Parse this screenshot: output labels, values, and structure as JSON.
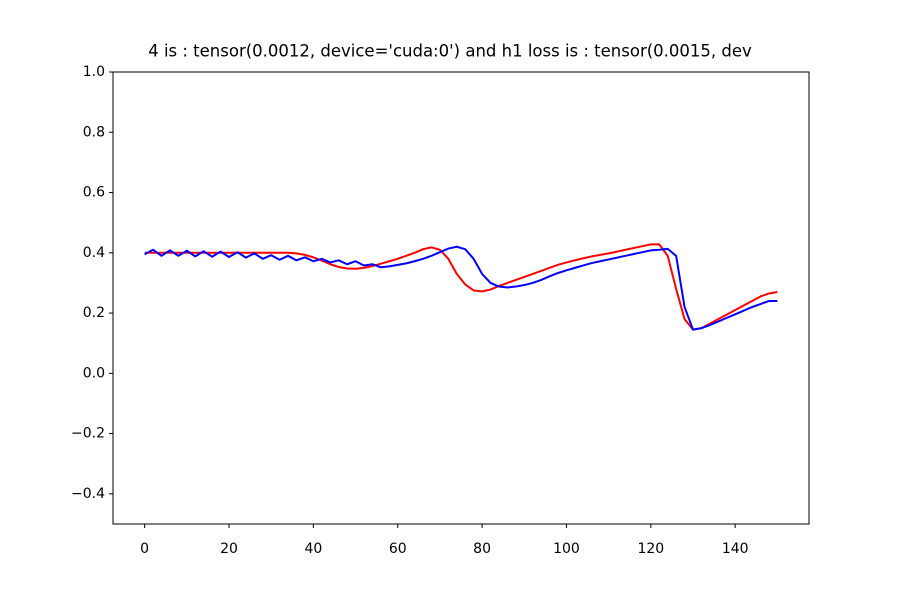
{
  "chart_data": {
    "type": "line",
    "title": "4 is : tensor(0.0012, device='cuda:0') and h1 loss is : tensor(0.0015, dev",
    "x": [
      0,
      2,
      4,
      6,
      8,
      10,
      12,
      14,
      16,
      18,
      20,
      22,
      24,
      26,
      28,
      30,
      32,
      34,
      36,
      38,
      40,
      42,
      44,
      46,
      48,
      50,
      52,
      54,
      56,
      58,
      60,
      62,
      64,
      66,
      68,
      70,
      72,
      74,
      76,
      78,
      80,
      82,
      84,
      86,
      88,
      90,
      92,
      94,
      96,
      98,
      100,
      102,
      104,
      106,
      108,
      110,
      112,
      114,
      116,
      118,
      120,
      122,
      124,
      126,
      128,
      130,
      132,
      134,
      136,
      138,
      140,
      142,
      144,
      146,
      148,
      150
    ],
    "series": [
      {
        "color": "#ff0000",
        "values": [
          0.4,
          0.4,
          0.4,
          0.4,
          0.4,
          0.4,
          0.4,
          0.4,
          0.4,
          0.4,
          0.4,
          0.4,
          0.4,
          0.4,
          0.4,
          0.4,
          0.4,
          0.4,
          0.398,
          0.393,
          0.385,
          0.374,
          0.362,
          0.353,
          0.348,
          0.347,
          0.35,
          0.356,
          0.364,
          0.372,
          0.38,
          0.39,
          0.4,
          0.412,
          0.418,
          0.41,
          0.38,
          0.33,
          0.295,
          0.275,
          0.272,
          0.278,
          0.29,
          0.3,
          0.31,
          0.32,
          0.33,
          0.34,
          0.35,
          0.36,
          0.368,
          0.375,
          0.382,
          0.388,
          0.393,
          0.398,
          0.404,
          0.41,
          0.416,
          0.422,
          0.428,
          0.428,
          0.39,
          0.28,
          0.18,
          0.145,
          0.15,
          0.165,
          0.18,
          0.195,
          0.21,
          0.225,
          0.24,
          0.255,
          0.265,
          0.27
        ]
      },
      {
        "color": "#0000ff",
        "values": [
          0.395,
          0.41,
          0.39,
          0.408,
          0.39,
          0.407,
          0.388,
          0.405,
          0.387,
          0.404,
          0.386,
          0.402,
          0.384,
          0.398,
          0.38,
          0.392,
          0.377,
          0.39,
          0.375,
          0.385,
          0.372,
          0.38,
          0.368,
          0.375,
          0.362,
          0.372,
          0.358,
          0.362,
          0.352,
          0.355,
          0.36,
          0.365,
          0.372,
          0.38,
          0.39,
          0.402,
          0.414,
          0.42,
          0.412,
          0.38,
          0.33,
          0.3,
          0.288,
          0.285,
          0.288,
          0.293,
          0.3,
          0.31,
          0.322,
          0.333,
          0.342,
          0.35,
          0.358,
          0.366,
          0.372,
          0.378,
          0.384,
          0.39,
          0.396,
          0.402,
          0.408,
          0.41,
          0.413,
          0.39,
          0.22,
          0.145,
          0.15,
          0.16,
          0.172,
          0.184,
          0.196,
          0.208,
          0.22,
          0.23,
          0.24,
          0.24
        ]
      }
    ],
    "xlim": [
      -7.5,
      157.5
    ],
    "xticks": [
      0,
      20,
      40,
      60,
      80,
      100,
      120,
      140
    ],
    "ylim": [
      -0.5,
      1.0
    ],
    "yticks": [
      {
        "value": -0.4,
        "label": "−0.4"
      },
      {
        "value": -0.2,
        "label": "−0.2"
      },
      {
        "value": 0,
        "label": "0.0"
      },
      0.2,
      0.4,
      0.6,
      0.8,
      {
        "value": 1.0,
        "label": "1.0"
      }
    ],
    "grid": false
  }
}
